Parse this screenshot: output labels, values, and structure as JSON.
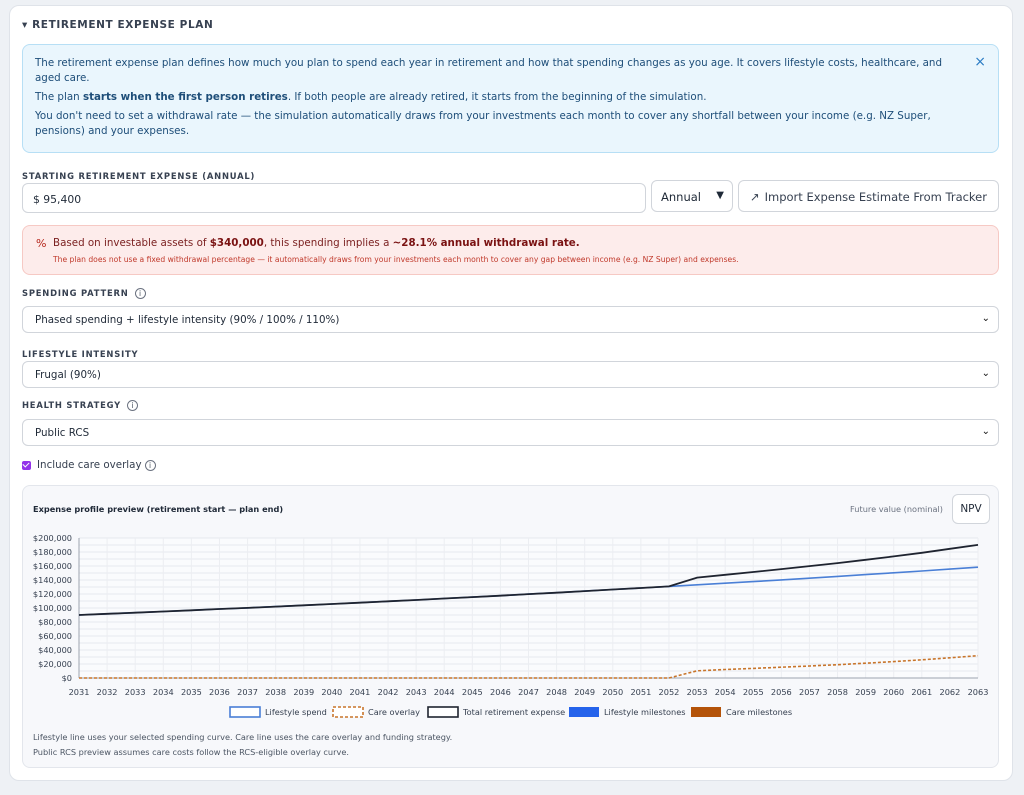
{
  "section": {
    "title": "▾ RETIREMENT EXPENSE PLAN"
  },
  "info": {
    "p1": "The retirement expense plan defines how much you plan to spend each year in retirement and how that spending changes as you age. It covers lifestyle costs, healthcare, and aged care.",
    "p2_pre": "The plan ",
    "p2_bold": "starts when the first person retires",
    "p2_post": ". If both people are already retired, it starts from the beginning of the simulation.",
    "p3": "You don't need to set a withdrawal rate — the simulation automatically draws from your investments each month to cover any shortfall between your income (e.g. NZ Super, pensions) and your expenses.",
    "close_icon": "×"
  },
  "starting_expense": {
    "label": "STARTING RETIREMENT EXPENSE (ANNUAL)",
    "value": "$ 95,400",
    "period": "Annual",
    "import_label": "Import Expense Estimate From Tracker",
    "import_icon": "↗"
  },
  "warning": {
    "icon": "%",
    "pre": "Based on investable assets of ",
    "assets": "$340,000",
    "mid": ", this spending implies a ",
    "rate": "~28.1% annual withdrawal rate.",
    "sub": "The plan does not use a fixed withdrawal percentage — it automatically draws from your investments each month to cover any gap between income (e.g. NZ Super) and expenses."
  },
  "spending_pattern": {
    "label": "SPENDING PATTERN",
    "value": "Phased spending + lifestyle intensity (90% / 100% / 110%)"
  },
  "lifestyle_intensity": {
    "label": "LIFESTYLE INTENSITY",
    "value": "Frugal (90%)"
  },
  "health_strategy": {
    "label": "HEALTH STRATEGY",
    "value": "Public RCS"
  },
  "care_overlay": {
    "label": "Include care overlay",
    "checked": true
  },
  "info_icon": "i",
  "chart_header": {
    "title": "Expense profile preview (retirement start — plan end)",
    "fv_label": "Future value (nominal)",
    "npv_label": "NPV"
  },
  "footnotes": {
    "line1": "Lifestyle line uses your selected spending curve. Care line uses the care overlay and funding strategy.",
    "line2": "Public RCS preview assumes care costs follow the RCS-eligible overlay curve."
  },
  "chart_data": {
    "type": "line",
    "x": [
      2031,
      2032,
      2033,
      2034,
      2035,
      2036,
      2037,
      2038,
      2039,
      2040,
      2041,
      2042,
      2043,
      2044,
      2045,
      2046,
      2047,
      2048,
      2049,
      2050,
      2051,
      2052,
      2053,
      2054,
      2055,
      2056,
      2057,
      2058,
      2059,
      2060,
      2061,
      2062,
      2063
    ],
    "x_tick_labels": [
      "2031",
      "2032",
      "2033",
      "2034",
      "2035",
      "2036",
      "2037",
      "2038",
      "2039",
      "2040",
      "2041",
      "2042",
      "2043",
      "2044",
      "2045",
      "2046",
      "2047",
      "2048",
      "2049",
      "2050",
      "2051",
      "2052",
      "2053",
      "2054",
      "2055",
      "2056",
      "2057",
      "2058",
      "2059",
      "2060",
      "2061",
      "2062",
      "2063"
    ],
    "y_tick_labels": [
      "$0",
      "$20,000",
      "$40,000",
      "$60,000",
      "$80,000",
      "$100,000",
      "$120,000",
      "$140,000",
      "$160,000",
      "$180,000",
      "$200,000"
    ],
    "ylim": [
      0,
      200000
    ],
    "y_ticks": [
      0,
      10000,
      20000,
      30000,
      40000,
      50000,
      60000,
      70000,
      80000,
      90000,
      100000,
      110000,
      120000,
      130000,
      140000,
      150000,
      160000,
      170000,
      180000,
      190000,
      200000
    ],
    "series": [
      {
        "name": "Lifestyle spend",
        "color": "#4a7fd6",
        "style": "solid",
        "values": [
          90000,
          91700,
          93300,
          95000,
          96700,
          98500,
          100200,
          102000,
          103900,
          105700,
          107600,
          109600,
          111500,
          113500,
          115600,
          117600,
          119800,
          121900,
          124100,
          126400,
          128600,
          130800,
          133100,
          135400,
          137700,
          140200,
          142600,
          145100,
          147700,
          150300,
          152900,
          155600,
          158300
        ]
      },
      {
        "name": "Care overlay",
        "color": "#c8752b",
        "style": "dashed",
        "values": [
          0,
          0,
          0,
          0,
          0,
          0,
          0,
          0,
          0,
          0,
          0,
          0,
          0,
          0,
          0,
          0,
          0,
          0,
          0,
          0,
          0,
          0,
          10300,
          12100,
          13700,
          15400,
          17200,
          19000,
          21100,
          23400,
          26000,
          28900,
          31900
        ]
      },
      {
        "name": "Total retirement expense",
        "color": "#1f2430",
        "style": "solid",
        "values": [
          90000,
          91700,
          93300,
          95000,
          96700,
          98500,
          100200,
          102000,
          103900,
          105700,
          107600,
          109600,
          111500,
          113500,
          115600,
          117600,
          119800,
          121900,
          124100,
          126400,
          128600,
          130800,
          143400,
          147500,
          151400,
          155600,
          159800,
          164100,
          168800,
          173700,
          178900,
          184500,
          190200
        ]
      }
    ],
    "legend": [
      {
        "label": "Lifestyle spend",
        "swatch": "outline",
        "color": "#4a7fd6"
      },
      {
        "label": "Care overlay",
        "swatch": "dashed",
        "color": "#c8752b"
      },
      {
        "label": "Total retirement expense",
        "swatch": "outline",
        "color": "#1f2430"
      },
      {
        "label": "Lifestyle milestones",
        "swatch": "fill",
        "color": "#2563eb"
      },
      {
        "label": "Care milestones",
        "swatch": "fill",
        "color": "#b45309"
      }
    ],
    "legend_position": "bottom",
    "grid": true
  }
}
